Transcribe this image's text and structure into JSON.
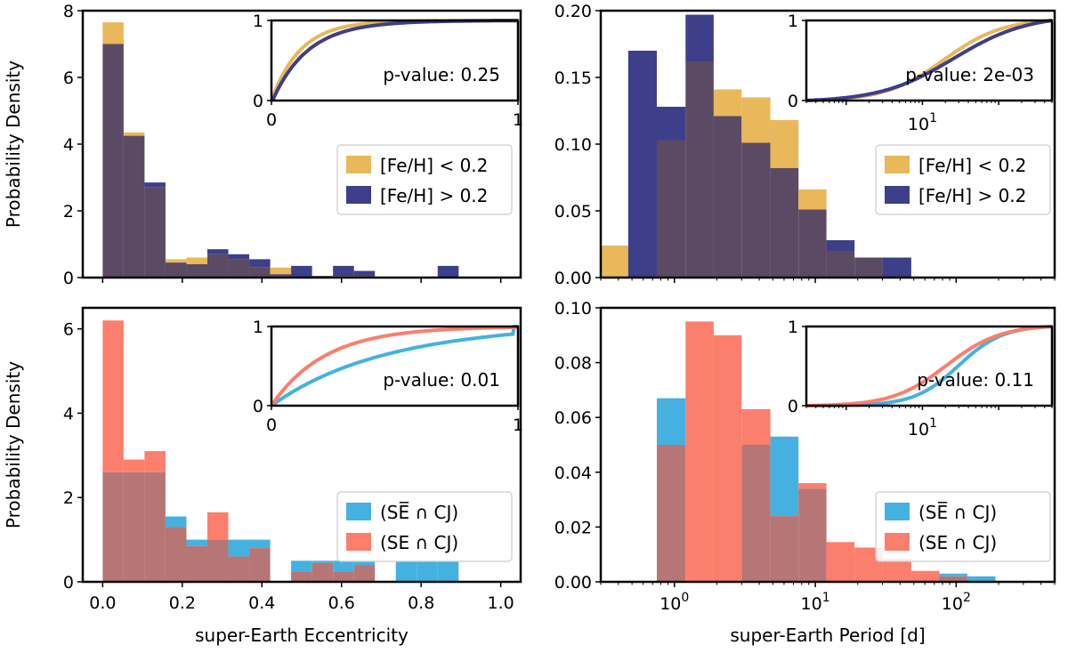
{
  "colors": {
    "low_met": "#e8b85a",
    "high_met": "#3d3f8a",
    "overlap_met": "#5b4a63",
    "se_bar_cj": "#45b1e1",
    "se_cj": "#fb7f6c",
    "overlap_cj": "#b67676"
  },
  "chart_data": [
    {
      "id": "top-left",
      "type": "histogram",
      "xscale": "linear",
      "xlim": [
        -0.05,
        1.05
      ],
      "ylim": [
        0,
        8
      ],
      "yticks": [
        0,
        2,
        4,
        6,
        8
      ],
      "xticks": [
        0.0,
        0.2,
        0.4,
        0.6,
        0.8,
        1.0
      ],
      "show_xticklabels": false,
      "ylabel": "Probability Density",
      "xlabel": "",
      "bin_edges": [
        0.0,
        0.0526,
        0.1052,
        0.1578,
        0.2104,
        0.263,
        0.3156,
        0.3682,
        0.4208,
        0.4734,
        0.526,
        0.5786,
        0.6312,
        0.6838,
        0.7364,
        0.789,
        0.8416,
        0.8942,
        0.9468
      ],
      "series": [
        {
          "name": "[Fe/H] < 0.2",
          "color_key": "low_met",
          "values": [
            7.65,
            4.35,
            2.7,
            0.55,
            0.6,
            0.7,
            0.55,
            0.3,
            0.3,
            0.0,
            0.05,
            0.05,
            0.05,
            0.0,
            0.0,
            0.0,
            0.0,
            0.0
          ]
        },
        {
          "name": "[Fe/H] > 0.2",
          "color_key": "high_met",
          "values": [
            7.0,
            4.25,
            2.85,
            0.45,
            0.4,
            0.85,
            0.7,
            0.55,
            0.1,
            0.35,
            0.05,
            0.35,
            0.2,
            0.0,
            0.0,
            0.0,
            0.35,
            0.0
          ]
        }
      ],
      "legend": [
        "[Fe/H] < 0.2",
        "[Fe/H] > 0.2"
      ],
      "legend_position": "right",
      "inset": {
        "xscale": "linear",
        "xlim": [
          0,
          1
        ],
        "xticks": [
          0,
          1
        ],
        "xticklabels": [
          "0",
          "1"
        ],
        "yticks": [
          0,
          1
        ],
        "yticklabels": [
          "0",
          "1"
        ],
        "pvalue": "p-value: 0.25",
        "curve": "e-fe"
      }
    },
    {
      "id": "top-right",
      "type": "histogram",
      "xscale": "log",
      "xlim": [
        0.3,
        500
      ],
      "ylim": [
        0,
        0.2
      ],
      "yticks": [
        0.0,
        0.05,
        0.1,
        0.15,
        0.2
      ],
      "yticklabels": [
        "0.00",
        "0.05",
        "0.10",
        "0.15",
        "0.20"
      ],
      "show_xticklabels": false,
      "ylabel": "",
      "xlabel": "",
      "bin_edges": [
        0.3,
        0.47,
        0.75,
        1.2,
        1.9,
        3.0,
        4.8,
        7.6,
        12.0,
        19.0,
        30.0,
        48.0
      ],
      "series": [
        {
          "name": "[Fe/H] < 0.2",
          "color_key": "low_met",
          "values": [
            0.024,
            0.0,
            0.103,
            0.162,
            0.141,
            0.135,
            0.118,
            0.066,
            0.02,
            0.015,
            0.0
          ]
        },
        {
          "name": "[Fe/H] > 0.2",
          "color_key": "high_met",
          "values": [
            0.0,
            0.17,
            0.128,
            0.197,
            0.121,
            0.101,
            0.082,
            0.051,
            0.028,
            0.015,
            0.015
          ]
        }
      ],
      "legend": [
        "[Fe/H] < 0.2",
        "[Fe/H] > 0.2"
      ],
      "legend_position": "right",
      "inset": {
        "xscale": "log",
        "xlim": [
          0.3,
          500
        ],
        "xticks": [
          10
        ],
        "xticklabels": [
          "10"
        ],
        "yticks": [
          0,
          1
        ],
        "yticklabels": [
          "0",
          "1"
        ],
        "pvalue": "p-value: 2e-03",
        "curve": "p-fe"
      }
    },
    {
      "id": "bottom-left",
      "type": "histogram",
      "xscale": "linear",
      "xlim": [
        -0.05,
        1.05
      ],
      "ylim": [
        0,
        6.5
      ],
      "yticks": [
        0,
        2,
        4,
        6
      ],
      "xticks": [
        0.0,
        0.2,
        0.4,
        0.6,
        0.8,
        1.0
      ],
      "xticklabels": [
        "0.0",
        "0.2",
        "0.4",
        "0.6",
        "0.8",
        "1.0"
      ],
      "show_xticklabels": true,
      "ylabel": "Probability Density",
      "xlabel": "super-Earth Eccentricity",
      "bin_edges": [
        0.0,
        0.0526,
        0.1052,
        0.1578,
        0.2104,
        0.263,
        0.3156,
        0.3682,
        0.4208,
        0.4734,
        0.526,
        0.5786,
        0.6312,
        0.6838,
        0.7364,
        0.789,
        0.8416,
        0.8942,
        0.9468
      ],
      "series": [
        {
          "name": "(SE̅ ∩ CJ)",
          "color_key": "se_bar_cj",
          "values": [
            2.6,
            2.6,
            2.6,
            1.55,
            1.0,
            1.0,
            1.0,
            1.0,
            0.0,
            0.5,
            0.5,
            0.5,
            0.5,
            0.0,
            0.5,
            0.5,
            0.5,
            0.0
          ]
        },
        {
          "name": "(SE ∩ CJ)",
          "color_key": "se_cj",
          "values": [
            6.2,
            2.9,
            3.1,
            1.3,
            0.85,
            1.65,
            0.6,
            0.8,
            0.0,
            0.25,
            0.45,
            0.25,
            0.4,
            0.0,
            0.0,
            0.0,
            0.0,
            0.0
          ]
        }
      ],
      "legend": [
        "(SE̅ ∩ CJ)",
        "(SE ∩ CJ)"
      ],
      "legend_position": "lower-right",
      "inset": {
        "xscale": "linear",
        "xlim": [
          0,
          1
        ],
        "xticks": [
          0,
          1
        ],
        "xticklabels": [
          "0",
          "1"
        ],
        "yticks": [
          0,
          1
        ],
        "yticklabels": [
          "0",
          "1"
        ],
        "pvalue": "p-value: 0.01",
        "curve": "e-cj"
      }
    },
    {
      "id": "bottom-right",
      "type": "histogram",
      "xscale": "log",
      "xlim": [
        0.3,
        500
      ],
      "ylim": [
        0,
        0.1
      ],
      "yticks": [
        0.0,
        0.02,
        0.04,
        0.06,
        0.08,
        0.1
      ],
      "yticklabels": [
        "0.00",
        "0.02",
        "0.04",
        "0.06",
        "0.08",
        "0.10"
      ],
      "xticks": [
        1,
        10,
        100
      ],
      "xticklabels": [
        "10",
        "10",
        "10"
      ],
      "xtick_exponents": [
        "0",
        "1",
        "2"
      ],
      "show_xticklabels": true,
      "ylabel": "",
      "xlabel": "super-Earth Period [d]",
      "bin_edges": [
        0.75,
        1.2,
        1.9,
        3.0,
        4.8,
        7.6,
        12.0,
        19.0,
        30.0,
        48.0,
        76.0,
        120.0,
        190.0
      ],
      "series": [
        {
          "name": "(SE̅ ∩ CJ)",
          "color_key": "se_bar_cj",
          "values": [
            0.067,
            0.0,
            0.0,
            0.05,
            0.053,
            0.034,
            0.0,
            0.0,
            0.0,
            0.0,
            0.003,
            0.002
          ]
        },
        {
          "name": "(SE ∩ CJ)",
          "color_key": "se_cj",
          "values": [
            0.05,
            0.095,
            0.09,
            0.063,
            0.024,
            0.036,
            0.0145,
            0.0125,
            0.0085,
            0.004,
            0.002,
            0.0
          ]
        }
      ],
      "legend": [
        "(SE̅ ∩ CJ)",
        "(SE ∩ CJ)"
      ],
      "legend_position": "lower-right",
      "inset": {
        "xscale": "log",
        "xlim": [
          0.3,
          500
        ],
        "xticks": [
          10
        ],
        "xticklabels": [
          "10"
        ],
        "yticks": [
          0,
          1
        ],
        "yticklabels": [
          "0",
          "1"
        ],
        "pvalue": "p-value: 0.11",
        "curve": "p-cj"
      }
    }
  ]
}
